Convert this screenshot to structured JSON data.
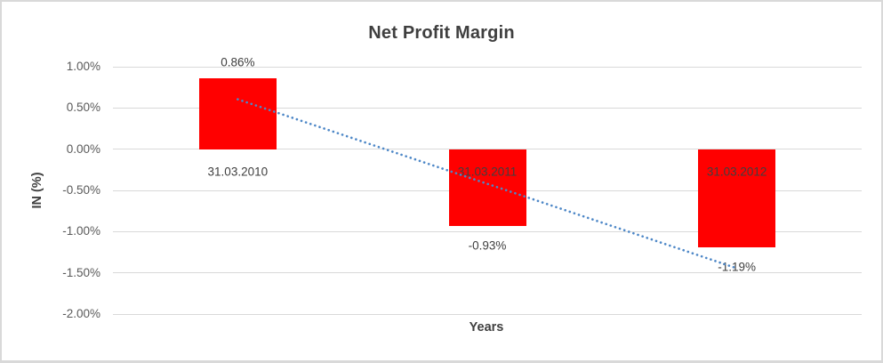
{
  "frame": {
    "background": "#FFFFFF",
    "border_color": "#D9D9D9"
  },
  "chart_data": {
    "type": "bar",
    "title": "Net Profit Margin",
    "xlabel": "Years",
    "ylabel": "IN (%)",
    "categories": [
      "31.03.2010",
      "31.03.2011",
      "31.03.2012"
    ],
    "values": [
      0.86,
      -0.93,
      -1.19
    ],
    "data_labels": [
      "0.86%",
      "-0.93%",
      "-1.19%"
    ],
    "ylim": [
      -2.0,
      1.0
    ],
    "ytick_step": 0.5,
    "ytick_labels": [
      "1.00%",
      "0.50%",
      "0.00%",
      "-0.50%",
      "-1.00%",
      "-1.50%",
      "-2.00%"
    ],
    "grid": true,
    "legend": "none",
    "bar_color": "#FF0000",
    "gridline_color": "#D9D9D9",
    "title_color": "#3F3F3F",
    "label_color": "#3F3F3F",
    "tick_color": "#595959",
    "trendline": {
      "type": "linear",
      "style": "dotted",
      "color": "#4D87C7",
      "start_value": 0.605,
      "end_value": -1.445
    }
  }
}
